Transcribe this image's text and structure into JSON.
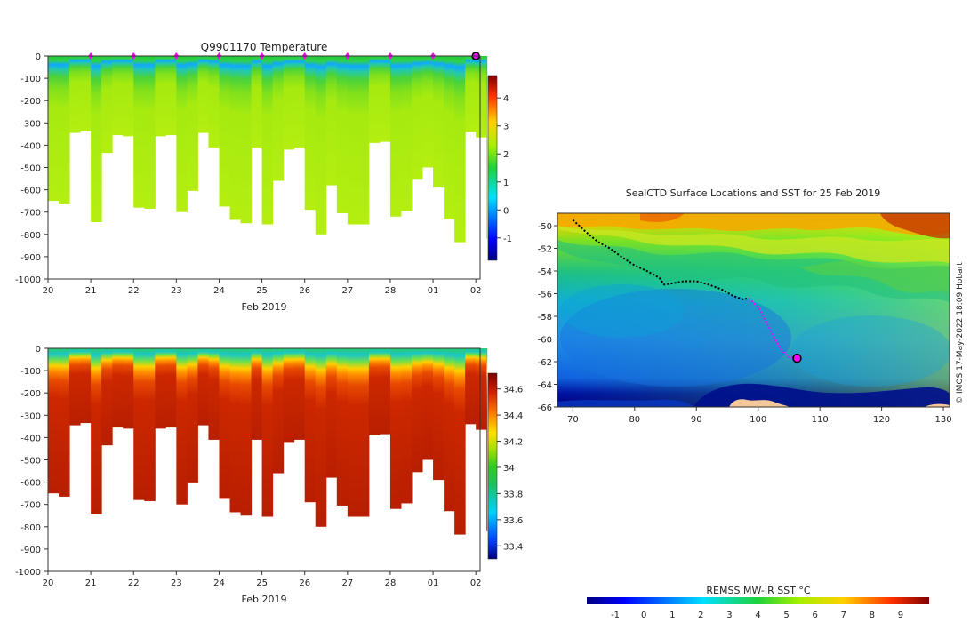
{
  "chart_data": [
    {
      "type": "heatmap",
      "title": "Q9901170  Temperature",
      "xlabel": "Feb 2019",
      "x_ticks": [
        "20",
        "21",
        "22",
        "23",
        "24",
        "25",
        "26",
        "27",
        "28",
        "01",
        "02"
      ],
      "y_ticks": [
        "0",
        "-100",
        "-200",
        "-300",
        "-400",
        "-500",
        "-600",
        "-700",
        "-800",
        "-900",
        "-1000"
      ],
      "ylim": [
        -1000,
        0
      ],
      "colorbar": {
        "ticks": [
          "4",
          "3",
          "2",
          "1",
          "0",
          "-1"
        ],
        "range": [
          -1.8,
          4.8
        ]
      },
      "profiles": [
        {
          "day": 20.05,
          "bottom": -650
        },
        {
          "day": 20.3,
          "bottom": -665
        },
        {
          "day": 20.55,
          "bottom": -345
        },
        {
          "day": 20.8,
          "bottom": -335
        },
        {
          "day": 21.05,
          "bottom": -745
        },
        {
          "day": 21.3,
          "bottom": -435
        },
        {
          "day": 21.55,
          "bottom": -355
        },
        {
          "day": 21.8,
          "bottom": -360
        },
        {
          "day": 22.05,
          "bottom": -680
        },
        {
          "day": 22.3,
          "bottom": -685
        },
        {
          "day": 22.55,
          "bottom": -360
        },
        {
          "day": 22.8,
          "bottom": -355
        },
        {
          "day": 23.05,
          "bottom": -700
        },
        {
          "day": 23.3,
          "bottom": -605
        },
        {
          "day": 23.55,
          "bottom": -345
        },
        {
          "day": 23.8,
          "bottom": -410
        },
        {
          "day": 24.05,
          "bottom": -675
        },
        {
          "day": 24.3,
          "bottom": -735
        },
        {
          "day": 24.55,
          "bottom": -750
        },
        {
          "day": 24.8,
          "bottom": -410
        },
        {
          "day": 25.05,
          "bottom": -755
        },
        {
          "day": 25.3,
          "bottom": -560
        },
        {
          "day": 25.55,
          "bottom": -420
        },
        {
          "day": 25.8,
          "bottom": -410
        },
        {
          "day": 26.05,
          "bottom": -690
        },
        {
          "day": 26.3,
          "bottom": -800
        },
        {
          "day": 26.55,
          "bottom": -580
        },
        {
          "day": 26.8,
          "bottom": -705
        },
        {
          "day": 27.05,
          "bottom": -755
        },
        {
          "day": 27.3,
          "bottom": -755
        },
        {
          "day": 27.55,
          "bottom": -390
        },
        {
          "day": 27.8,
          "bottom": -385
        },
        {
          "day": 28.05,
          "bottom": -720
        },
        {
          "day": 28.3,
          "bottom": -695
        },
        {
          "day": 28.55,
          "bottom": -555
        },
        {
          "day": 28.8,
          "bottom": -500
        },
        {
          "day": 29.05,
          "bottom": -590
        },
        {
          "day": 29.3,
          "bottom": -730
        },
        {
          "day": 29.55,
          "bottom": -835
        },
        {
          "day": 29.8,
          "bottom": -340
        },
        {
          "day": 30.05,
          "bottom": -365
        },
        {
          "day": 30.3,
          "bottom": -820
        }
      ],
      "surface_markers": [
        21,
        22,
        23,
        24,
        25,
        26,
        27,
        28,
        29
      ],
      "current_marker_day": 30
    },
    {
      "type": "heatmap",
      "title": "",
      "xlabel": "Feb 2019",
      "x_ticks": [
        "20",
        "21",
        "22",
        "23",
        "24",
        "25",
        "26",
        "27",
        "28",
        "01",
        "02"
      ],
      "y_ticks": [
        "0",
        "-100",
        "-200",
        "-300",
        "-400",
        "-500",
        "-600",
        "-700",
        "-800",
        "-900",
        "-1000"
      ],
      "ylim": [
        -1000,
        0
      ],
      "colorbar": {
        "ticks": [
          "34.6",
          "34.4",
          "34.2",
          "34",
          "33.8",
          "33.6",
          "33.4"
        ],
        "range": [
          33.3,
          34.72
        ]
      }
    },
    {
      "type": "heatmap",
      "title": "SealCTD Surface Locations and SST for 25 Feb 2019",
      "x_ticks": [
        "70",
        "80",
        "90",
        "100",
        "110",
        "120",
        "130"
      ],
      "y_ticks": [
        "-50",
        "-52",
        "-54",
        "-56",
        "-58",
        "-60",
        "-62",
        "-64",
        "-66"
      ],
      "xlim": [
        67.5,
        131
      ],
      "ylim": [
        -66,
        -48.9
      ],
      "track": [
        [
          70,
          -49.5
        ],
        [
          72,
          -50.5
        ],
        [
          74,
          -51.4
        ],
        [
          76,
          -52
        ],
        [
          78,
          -52.8
        ],
        [
          80,
          -53.5
        ],
        [
          82,
          -54
        ],
        [
          84,
          -54.6
        ],
        [
          84.8,
          -55.2
        ],
        [
          86,
          -55.1
        ],
        [
          88,
          -54.9
        ],
        [
          90,
          -54.9
        ],
        [
          92,
          -55.2
        ],
        [
          94,
          -55.6
        ],
        [
          96,
          -56.2
        ],
        [
          97.5,
          -56.5
        ],
        [
          98.5,
          -56.4
        ]
      ],
      "recent_track": [
        [
          98.5,
          -56.4
        ],
        [
          100,
          -57.2
        ],
        [
          101,
          -58.2
        ],
        [
          102,
          -59.2
        ],
        [
          103,
          -60.3
        ],
        [
          104,
          -61.1
        ],
        [
          105,
          -61.6
        ],
        [
          106.3,
          -61.7
        ]
      ],
      "current_position": [
        106.3,
        -61.7
      ],
      "credit": "© IMOS 17-May-2022 18:09 Hobart"
    }
  ],
  "sst_legend": {
    "title": "REMSS MW-IR SST °C",
    "ticks": [
      "-1",
      "0",
      "1",
      "2",
      "3",
      "4",
      "5",
      "6",
      "7",
      "8",
      "9"
    ],
    "range": [
      -2,
      10
    ]
  }
}
